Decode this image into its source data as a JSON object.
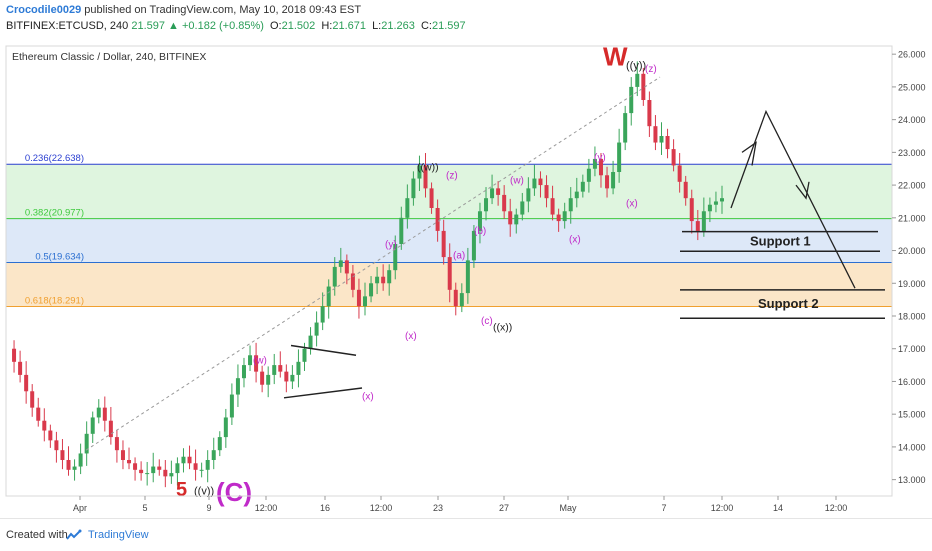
{
  "header": {
    "author": "Crocodile0029",
    "published_text": "published on TradingView.com, May 10, 2018 09:43 EST",
    "symbol": "BITFINEX:ETCUSD, 240",
    "last": "21.597",
    "change": "▲ +0.182 (+0.85%)",
    "o_label": "O:",
    "o_value": "21.502",
    "h_label": "H:",
    "h_value": "21.671",
    "l_label": "L:",
    "l_value": "21.263",
    "c_label": "C:",
    "c_value": "21.597"
  },
  "footer": {
    "created_with": "Created with",
    "brand": "TradingView"
  },
  "chart_data": {
    "type": "candlestick",
    "title": "Ethereum Classic / Dollar, 240, BITFINEX",
    "ylim": [
      12.5,
      26.25
    ],
    "y_ticks": [
      "13.000",
      "14.000",
      "15.000",
      "16.000",
      "17.000",
      "18.000",
      "19.000",
      "20.000",
      "21.000",
      "22.000",
      "23.000",
      "24.000",
      "25.000",
      "26.000"
    ],
    "x_ticks": [
      "Apr",
      "5",
      "9",
      "12:00",
      "16",
      "12:00",
      "23",
      "27",
      "May",
      "7",
      "12:00",
      "14",
      "12:00"
    ],
    "fib_levels": [
      {
        "label": "0.236(22.638)",
        "value": 22.638,
        "color": "#2b3fd1"
      },
      {
        "label": "0.382(20.977)",
        "value": 20.977,
        "color": "#3ec93e"
      },
      {
        "label": "0.5(19.634)",
        "value": 19.634,
        "color": "#2b6fd1"
      },
      {
        "label": "0.618(18.291)",
        "value": 18.291,
        "color": "#f0a030"
      }
    ],
    "zones": [
      {
        "from": 20.977,
        "to": 22.638,
        "color": "#dff5df"
      },
      {
        "from": 19.634,
        "to": 20.977,
        "color": "#dde8f8"
      },
      {
        "from": 18.291,
        "to": 19.634,
        "color": "#fbe6c8"
      }
    ],
    "supports": [
      {
        "label": "Support 1",
        "levels": [
          20.58,
          19.98
        ]
      },
      {
        "label": "Support 2",
        "levels": [
          18.8,
          17.93
        ]
      }
    ],
    "wave_labels": [
      {
        "text": "W",
        "x": 0.0,
        "y": 25.55
      },
      {
        "text": "((y))"
      },
      {
        "text": "(z)"
      },
      {
        "text": "((w))"
      },
      {
        "text": "(y)"
      },
      {
        "text": "(z)"
      },
      {
        "text": "(w)"
      },
      {
        "text": "(x)"
      },
      {
        "text": "(x)"
      },
      {
        "text": "(b)"
      },
      {
        "text": "(a)"
      },
      {
        "text": "(y)"
      },
      {
        "text": "(c)"
      },
      {
        "text": "((x))"
      },
      {
        "text": "(x)"
      },
      {
        "text": "(w)"
      },
      {
        "text": "(x)"
      },
      {
        "text": "5"
      },
      {
        "text": "((v))"
      },
      {
        "text": "(C)"
      }
    ],
    "price_path": [
      17.0,
      16.6,
      16.2,
      15.7,
      15.2,
      14.8,
      14.5,
      14.2,
      13.9,
      13.6,
      13.3,
      13.4,
      13.8,
      14.4,
      14.9,
      15.2,
      14.8,
      14.3,
      13.9,
      13.6,
      13.5,
      13.3,
      13.2,
      13.2,
      13.4,
      13.3,
      13.1,
      13.2,
      13.5,
      13.7,
      13.5,
      13.3,
      13.3,
      13.6,
      13.9,
      14.3,
      14.9,
      15.6,
      16.1,
      16.5,
      16.8,
      16.3,
      15.9,
      16.2,
      16.5,
      16.3,
      16.0,
      16.2,
      16.6,
      17.0,
      17.4,
      17.8,
      18.3,
      18.9,
      19.5,
      19.7,
      19.3,
      18.8,
      18.3,
      18.6,
      19.0,
      19.2,
      19.0,
      19.4,
      20.2,
      21.0,
      21.6,
      22.2,
      22.6,
      21.9,
      21.3,
      20.6,
      19.8,
      18.8,
      18.3,
      18.7,
      19.7,
      20.6,
      21.2,
      21.6,
      21.9,
      21.7,
      21.2,
      20.8,
      21.1,
      21.5,
      21.9,
      22.2,
      22.0,
      21.6,
      21.1,
      20.9,
      21.2,
      21.6,
      21.8,
      22.1,
      22.5,
      22.8,
      22.3,
      21.9,
      22.4,
      23.3,
      24.2,
      25.0,
      25.4,
      24.6,
      23.8,
      23.3,
      23.5,
      23.1,
      22.6,
      22.1,
      21.6,
      20.9,
      20.6,
      21.2,
      21.4,
      21.5,
      21.6
    ]
  }
}
